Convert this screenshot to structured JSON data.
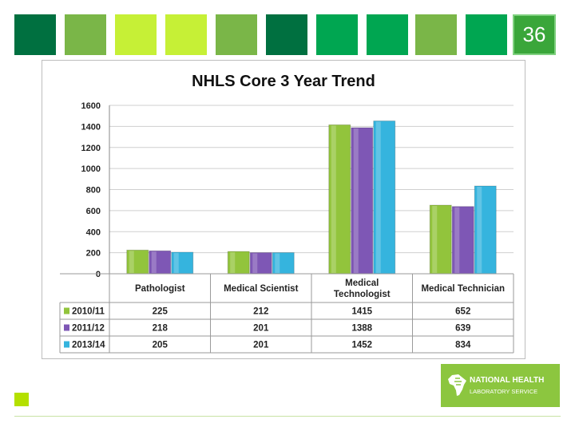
{
  "slide": {
    "number": "36",
    "tile_colors": [
      "#007040",
      "#7ab648",
      "#c6f036",
      "#c6f036",
      "#7ab648",
      "#007040",
      "#00a651",
      "#00a651",
      "#7ab648",
      "#00a651"
    ]
  },
  "logo": {
    "line1": "NATIONAL HEALTH",
    "line2": "LABORATORY SERVICE"
  },
  "chart_data": {
    "type": "bar",
    "title": "NHLS Core 3 Year Trend",
    "categories": [
      "Pathologist",
      "Medical Scientist",
      "Medical Technologist",
      "Medical Technician"
    ],
    "series": [
      {
        "name": "2010/11",
        "values": [
          225,
          212,
          1415,
          652
        ],
        "color": "#92c43c"
      },
      {
        "name": "2011/12",
        "values": [
          218,
          201,
          1388,
          639
        ],
        "color": "#7e57b5"
      },
      {
        "name": "2013/14",
        "values": [
          205,
          201,
          1452,
          834
        ],
        "color": "#35b4de"
      }
    ],
    "table_text": [
      [
        "225",
        "212",
        "1415",
        "652"
      ],
      [
        "218",
        "201",
        "1388",
        "639"
      ],
      [
        "205",
        "201",
        "1452",
        "834"
      ]
    ],
    "yticks": [
      "0",
      "200",
      "400",
      "600",
      "800",
      "1000",
      "1200",
      "1400",
      "1600"
    ],
    "ylim": [
      0,
      1600
    ],
    "grid": true,
    "legend": "data-table-left"
  }
}
